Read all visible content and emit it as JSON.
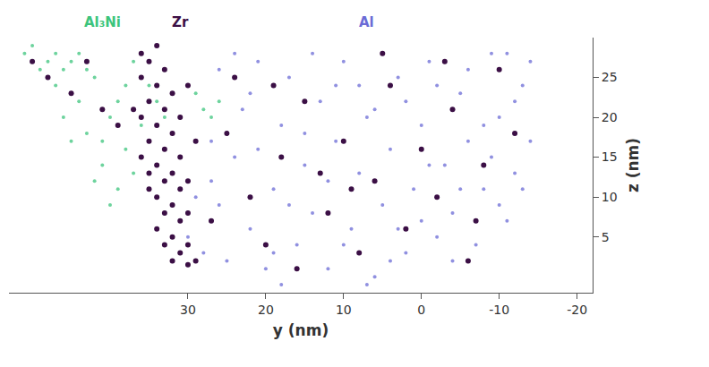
{
  "chart_data": {
    "type": "scatter",
    "x_label": "y (nm)",
    "y_label": "z (nm)",
    "xlim": [
      53,
      -22
    ],
    "xticks": [
      30,
      20,
      10,
      0,
      -10,
      -20
    ],
    "ylim": [
      -2,
      30
    ],
    "yticks": [
      5,
      10,
      15,
      20,
      25
    ],
    "grid": false,
    "marker": "circle",
    "series": [
      {
        "name": "Al",
        "color": "#6b6bd6",
        "x": [
          30,
          28,
          27,
          26,
          25,
          24,
          23,
          22,
          21,
          20,
          19,
          18,
          17,
          16,
          15,
          14,
          13,
          12,
          11,
          10,
          9,
          8,
          7,
          6,
          5,
          4,
          3,
          2,
          1,
          0,
          -1,
          -2,
          -3,
          -4,
          -5,
          -6,
          -7,
          -8,
          -9,
          -10,
          -11,
          -12,
          -13,
          -14,
          -14,
          26,
          24,
          21,
          19,
          17,
          14,
          12,
          10,
          8,
          6,
          4,
          2,
          0,
          -2,
          -4,
          -6,
          -8,
          -10,
          -12,
          29,
          27,
          22,
          18,
          15,
          11,
          7,
          3,
          -1,
          -5,
          -9,
          -11,
          -13
        ],
        "values": [
          5,
          3,
          12,
          26,
          2,
          15,
          21,
          6,
          27,
          1,
          11,
          19,
          25,
          4,
          14,
          8,
          22,
          1,
          17,
          27,
          6,
          13,
          20,
          0,
          9,
          16,
          25,
          3,
          11,
          19,
          27,
          5,
          14,
          8,
          23,
          17,
          4,
          11,
          28,
          20,
          7,
          13,
          24,
          17,
          27,
          9,
          28,
          16,
          3,
          9,
          28,
          12,
          4,
          24,
          21,
          2,
          22,
          7,
          24,
          2,
          26,
          19,
          9,
          22,
          10,
          17,
          23,
          -1,
          18,
          24,
          -1,
          6,
          14,
          11,
          15,
          28,
          11
        ]
      },
      {
        "name": "Al₃Ni",
        "color": "#3cc47c",
        "x": [
          51,
          49,
          50,
          47,
          46,
          48,
          45,
          44,
          43,
          42,
          41,
          40,
          39,
          38,
          38,
          37,
          44,
          42,
          46,
          40,
          39,
          36,
          43,
          47,
          41,
          37,
          45,
          35,
          34,
          33,
          28,
          27,
          26,
          29
        ],
        "values": [
          28,
          26,
          29,
          24,
          20,
          27,
          27,
          22,
          18,
          25,
          14,
          20,
          11,
          16,
          24,
          27,
          28,
          12,
          26,
          9,
          22,
          19,
          26,
          28,
          17,
          13,
          17,
          24,
          22,
          20,
          21,
          20,
          22,
          23
        ]
      },
      {
        "name": "Zr",
        "color": "#3b0f45",
        "x": [
          36,
          35,
          34,
          33,
          36,
          34,
          32,
          35,
          33,
          31,
          36,
          34,
          32,
          35,
          33,
          31,
          34,
          32,
          35,
          33,
          31,
          34,
          32,
          30,
          33,
          31,
          34,
          32,
          30,
          33,
          31,
          29,
          32,
          30,
          35,
          36,
          30,
          29,
          30,
          37,
          50,
          48,
          45,
          43,
          41,
          39,
          25,
          22,
          20,
          18,
          15,
          12,
          10,
          8,
          6,
          4,
          2,
          0,
          -2,
          -4,
          -6,
          -8,
          -10,
          -12,
          24,
          16,
          13,
          5,
          -3,
          19,
          27,
          9,
          -7
        ],
        "values": [
          28,
          27,
          29,
          26,
          25,
          24,
          23,
          22,
          21,
          20,
          20,
          19,
          18,
          17,
          16,
          15,
          14,
          13,
          13,
          12,
          11,
          10,
          9,
          8,
          8,
          7,
          6,
          5,
          4,
          4,
          3,
          2,
          2,
          1.5,
          11,
          15,
          12,
          17,
          24,
          21,
          27,
          25,
          23,
          27,
          21,
          19,
          18,
          10,
          4,
          15,
          22,
          8,
          17,
          3,
          12,
          24,
          6,
          16,
          10,
          21,
          2,
          14,
          26,
          18,
          25,
          1,
          13,
          28,
          27,
          24,
          7,
          11,
          7
        ]
      }
    ]
  }
}
